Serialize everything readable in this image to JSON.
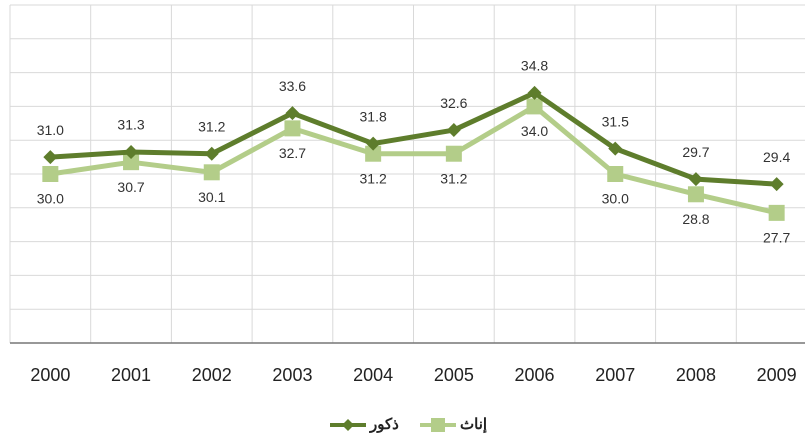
{
  "chart_data": {
    "type": "line",
    "categories": [
      "2000",
      "2001",
      "2002",
      "2003",
      "2004",
      "2005",
      "2006",
      "2007",
      "2008",
      "2009"
    ],
    "series": [
      {
        "name": "ذكور",
        "color": "#5e7d2c",
        "marker": "diamond",
        "values": [
          31.0,
          31.3,
          31.2,
          33.6,
          31.8,
          32.6,
          34.8,
          31.5,
          29.7,
          29.4
        ],
        "value_labels": [
          "31.0",
          "31.3",
          "31.2",
          "33.6",
          "31.8",
          "32.6",
          "34.8",
          "31.5",
          "29.7",
          "29.4"
        ]
      },
      {
        "name": "إناث",
        "color": "#b3cd89",
        "marker": "square",
        "values": [
          30.0,
          30.7,
          30.1,
          32.7,
          31.2,
          31.2,
          34.0,
          30.0,
          28.8,
          27.7
        ],
        "value_labels": [
          "30.0",
          "30.7",
          "30.1",
          "32.7",
          "31.2",
          "31.2",
          "34.0",
          "30.0",
          "28.8",
          "27.7"
        ]
      }
    ],
    "ylim": [
      20,
      40
    ],
    "yticks": [
      20,
      22,
      24,
      26,
      28,
      30,
      32,
      34,
      36,
      38,
      40
    ],
    "grid": true,
    "legend": "bottom"
  }
}
